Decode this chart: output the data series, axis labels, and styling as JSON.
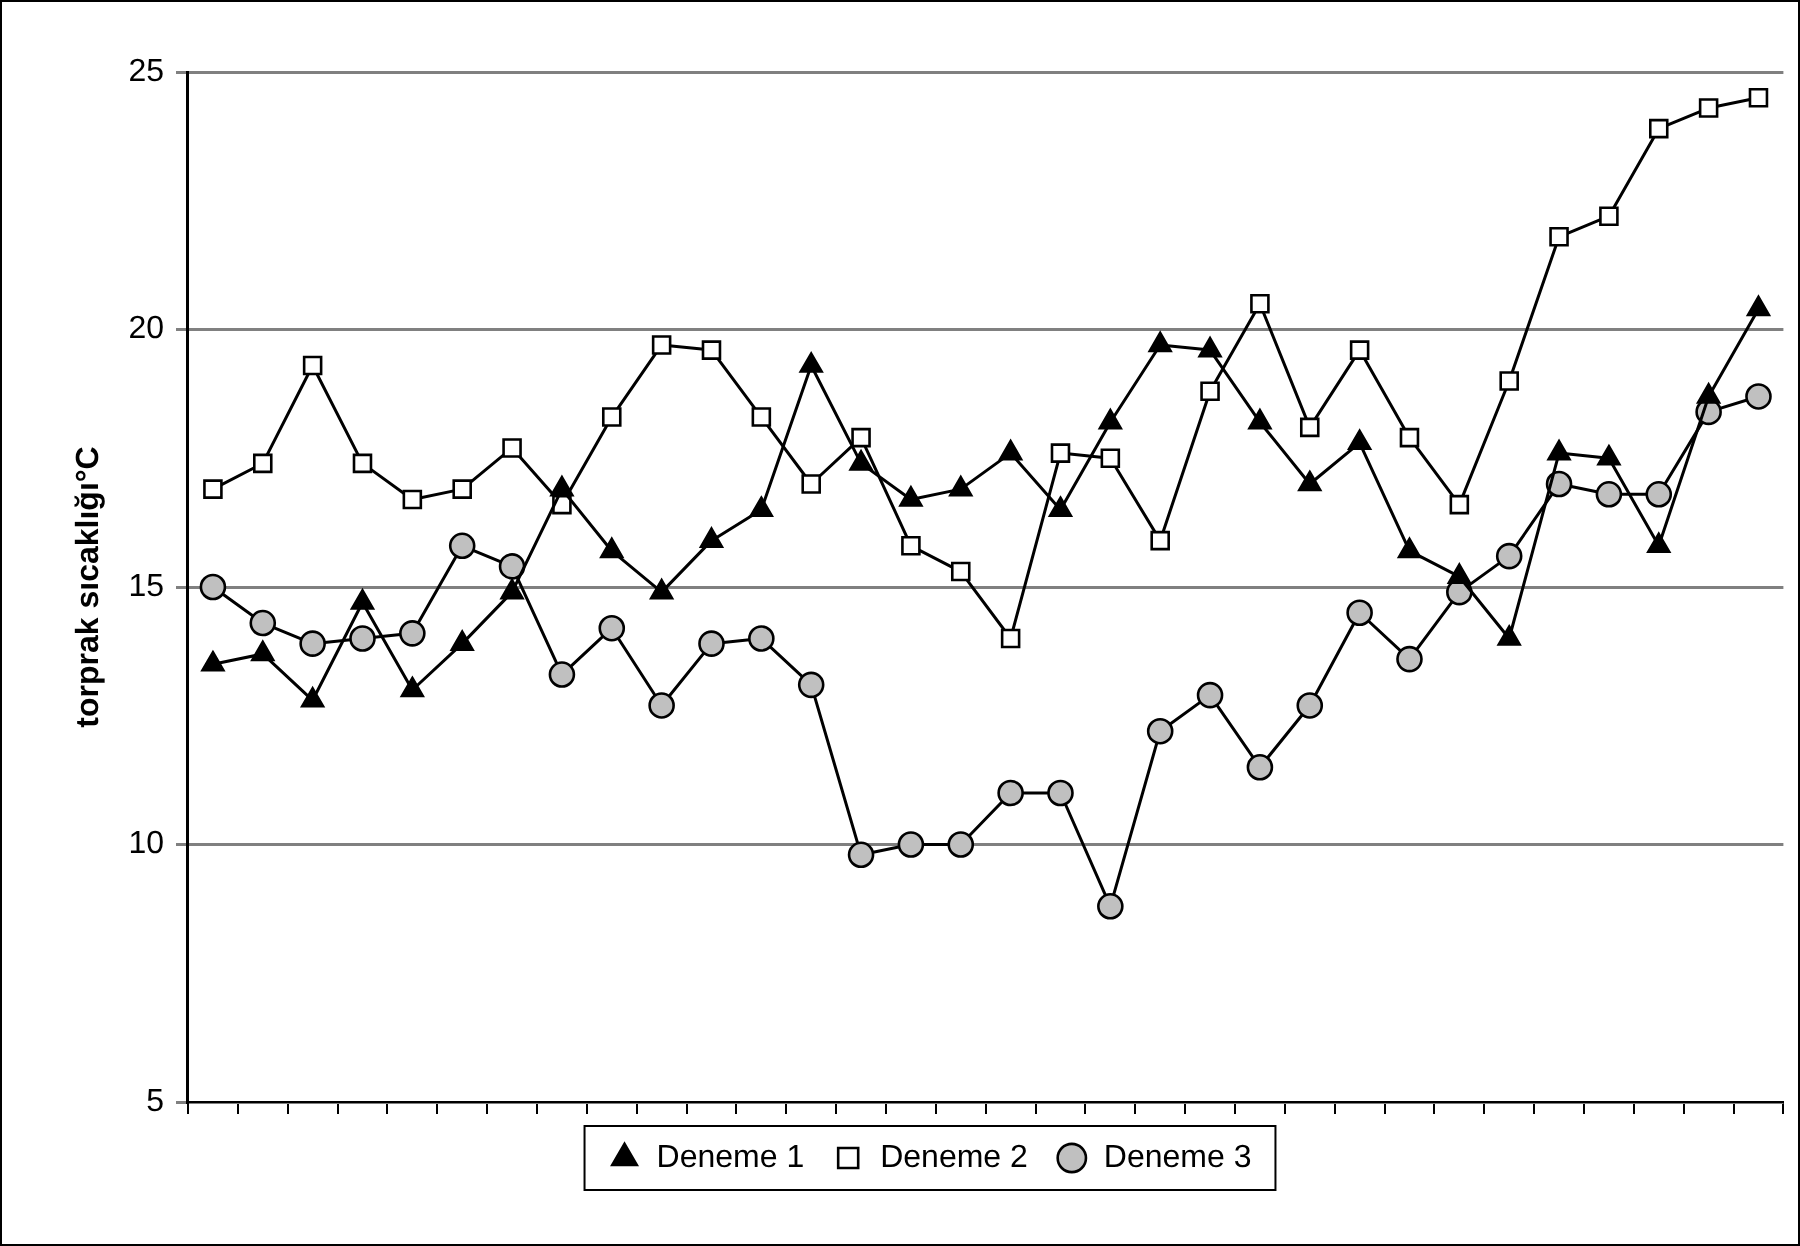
{
  "chart_data": {
    "type": "line",
    "ylabel": "torprak sıcaklığı°C",
    "categories": [
      null,
      null,
      null,
      null,
      null,
      null,
      null,
      null,
      null,
      null,
      null,
      null,
      null,
      null,
      null,
      null,
      null,
      null,
      null,
      null,
      null,
      null,
      null,
      null,
      null,
      null,
      null,
      null,
      null,
      null,
      null,
      null
    ],
    "series": [
      {
        "name": "Deneme 1",
        "color": "#000000",
        "marker": "triangle",
        "values": [
          13.5,
          13.7,
          12.8,
          14.7,
          13.0,
          13.9,
          14.9,
          16.9,
          15.7,
          14.9,
          15.9,
          16.5,
          19.3,
          17.4,
          16.7,
          16.9,
          17.6,
          16.5,
          18.2,
          19.7,
          19.6,
          18.2,
          17.0,
          17.8,
          15.7,
          15.2,
          14.0,
          17.6,
          17.5,
          15.8,
          18.7,
          20.4
        ]
      },
      {
        "name": "Deneme 2",
        "color": "#ffffff",
        "marker": "square",
        "values": [
          16.9,
          17.4,
          19.3,
          17.4,
          16.7,
          16.9,
          17.7,
          16.6,
          18.3,
          19.7,
          19.6,
          18.3,
          17.0,
          17.9,
          15.8,
          15.3,
          14.0,
          17.6,
          17.5,
          15.9,
          18.8,
          20.5,
          18.1,
          19.6,
          17.9,
          16.6,
          19.0,
          21.8,
          22.2,
          23.9,
          24.3,
          24.5
        ]
      },
      {
        "name": "Deneme 3",
        "color": "#c0c0c0",
        "marker": "circle",
        "values": [
          15.0,
          14.3,
          13.9,
          14.0,
          14.1,
          15.8,
          15.4,
          13.3,
          14.2,
          12.7,
          13.9,
          14.0,
          13.1,
          9.8,
          10.0,
          10.0,
          11.0,
          11.0,
          8.8,
          12.2,
          12.9,
          11.5,
          12.7,
          14.5,
          13.6,
          14.9,
          15.6,
          17.0,
          16.8,
          16.8,
          18.4,
          18.7
        ]
      }
    ],
    "ylim": [
      5,
      25
    ],
    "yticks": [
      5,
      10,
      15,
      20,
      25
    ],
    "grid": "y",
    "legend": "bottom",
    "tick_labels": "y",
    "line_style": "solid"
  }
}
